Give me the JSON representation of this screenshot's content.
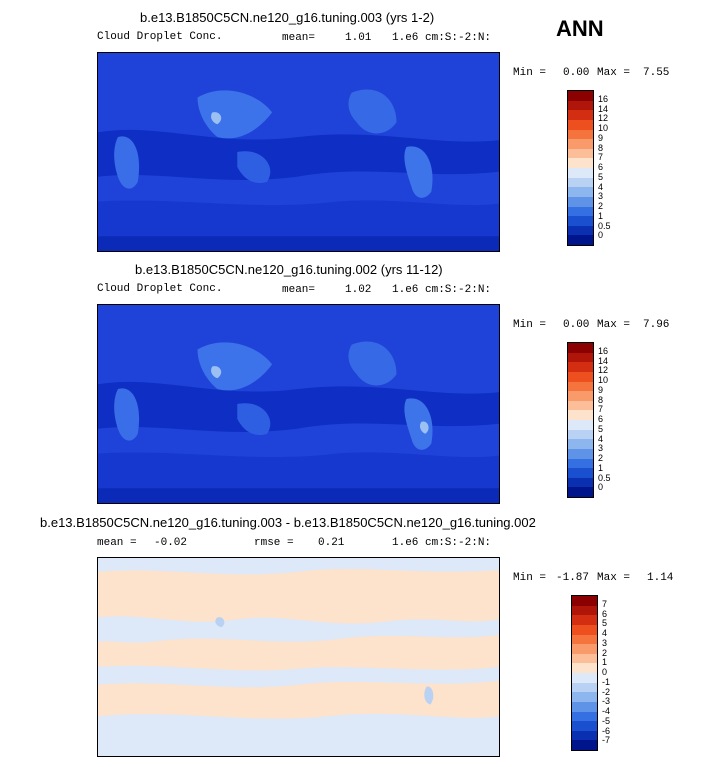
{
  "season": "ANN",
  "panels": [
    {
      "title": "b.e13.B1850C5CN.ne120_g16.tuning.003 (yrs 1-2)",
      "variable": "Cloud Droplet Conc.",
      "mean_label": "mean=",
      "mean": "1.01",
      "units": "1.e6 cm:S:-2:N:",
      "min_label": "Min =",
      "min": "0.00",
      "max_label": "Max =",
      "max": "7.55",
      "levels": [
        "16",
        "14",
        "12",
        "10",
        "9",
        "8",
        "7",
        "6",
        "5",
        "4",
        "3",
        "2",
        "1",
        "0.5",
        "0"
      ],
      "colors": [
        "#8b0000",
        "#b0150a",
        "#d42e12",
        "#ee4f1f",
        "#f5733c",
        "#f99a6a",
        "#fbbe98",
        "#fde2cc",
        "#dde8f8",
        "#b9d1f3",
        "#8db5ee",
        "#5f93e8",
        "#3570e2",
        "#1a4fd0",
        "#0a2fb0",
        "#00148c"
      ]
    },
    {
      "title": "b.e13.B1850C5CN.ne120_g16.tuning.002 (yrs 11-12)",
      "variable": "Cloud Droplet Conc.",
      "mean_label": "mean=",
      "mean": "1.02",
      "units": "1.e6 cm:S:-2:N:",
      "min_label": "Min =",
      "min": "0.00",
      "max_label": "Max =",
      "max": "7.96",
      "levels": [
        "16",
        "14",
        "12",
        "10",
        "9",
        "8",
        "7",
        "6",
        "5",
        "4",
        "3",
        "2",
        "1",
        "0.5",
        "0"
      ],
      "colors": [
        "#8b0000",
        "#b0150a",
        "#d42e12",
        "#ee4f1f",
        "#f5733c",
        "#f99a6a",
        "#fbbe98",
        "#fde2cc",
        "#dde8f8",
        "#b9d1f3",
        "#8db5ee",
        "#5f93e8",
        "#3570e2",
        "#1a4fd0",
        "#0a2fb0",
        "#00148c"
      ]
    },
    {
      "title": "b.e13.B1850C5CN.ne120_g16.tuning.003 - b.e13.B1850C5CN.ne120_g16.tuning.002",
      "mean_label": "mean =",
      "mean": "-0.02",
      "rmse_label": "rmse =",
      "rmse": "0.21",
      "units": "1.e6 cm:S:-2:N:",
      "min_label": "Min =",
      "min": "-1.87",
      "max_label": "Max =",
      "max": "1.14",
      "levels": [
        "7",
        "6",
        "5",
        "4",
        "3",
        "2",
        "1",
        "0",
        "-1",
        "-2",
        "-3",
        "-4",
        "-5",
        "-6",
        "-7"
      ],
      "colors": [
        "#8b0000",
        "#b0150a",
        "#d42e12",
        "#ee4f1f",
        "#f5733c",
        "#f99a6a",
        "#fbbe98",
        "#fde2cc",
        "#dde8f8",
        "#b9d1f3",
        "#8db5ee",
        "#5f93e8",
        "#3570e2",
        "#1a4fd0",
        "#0a2fb0",
        "#00148c"
      ]
    }
  ]
}
